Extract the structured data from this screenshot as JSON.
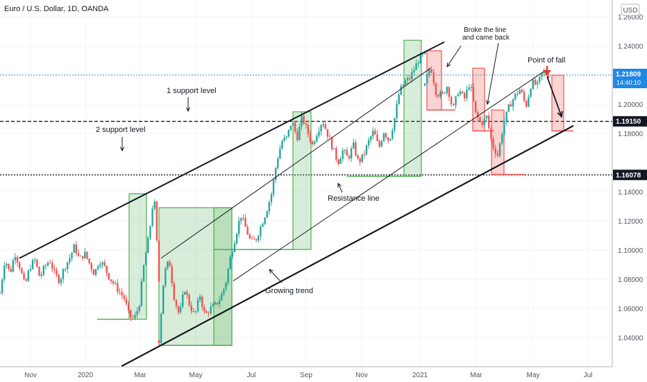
{
  "chart_data": {
    "type": "candlestick",
    "title": "Euro / U.S. Dollar, 1D, OANDA",
    "currency": "USD",
    "x_ticks": [
      "Nov",
      "2020",
      "Mar",
      "May",
      "Jul",
      "Sep",
      "Nov",
      "2021",
      "Mar",
      "May",
      "Jul"
    ],
    "y_ticks": [
      "1.26000",
      "1.24000",
      "1.20000",
      "1.18000",
      "1.14000",
      "1.12000",
      "1.10000",
      "1.08000",
      "1.06000",
      "1.04000"
    ],
    "ylim": [
      1.02,
      1.27
    ],
    "price_labels": [
      {
        "value": "1.21809",
        "sub": "14:40:10",
        "price": 1.21809,
        "color": "#1e88e5"
      },
      {
        "value": "1.19150",
        "price": 1.1915,
        "color": "#131722"
      },
      {
        "value": "1.16078",
        "price": 1.16078,
        "color": "#131722"
      }
    ],
    "horizontal_levels": [
      {
        "price": 1.1915,
        "style": "dashed"
      },
      {
        "price": 1.16078,
        "style": "dotted"
      },
      {
        "price": 1.21809,
        "style": "dotted",
        "color": "#1e88e5"
      }
    ],
    "annotations": {
      "support1": "1 support level",
      "support2": "2 support level",
      "resistance": "Resistance line",
      "growing": "Growing trend",
      "broke_line1": "Broke the line",
      "broke_line2": "and came back",
      "point_of_fall": "Point of fall"
    },
    "price_path": [
      [
        1.093,
        1.113,
        1.104,
        1.116,
        1.108,
        1.097,
        1.108,
        1.112,
        1.102,
        1.108,
        1.112,
        1.104,
        1.1,
        1.108,
        1.113,
        1.12,
        1.112,
        1.116,
        1.11,
        1.104,
        1.112,
        1.108,
        1.102,
        1.098,
        1.094,
        1.09,
        1.08,
        1.078,
        1.086,
        1.11,
        1.126,
        1.15,
        1.1
      ],
      [
        1.066,
        1.104,
        1.112,
        1.09,
        1.08,
        1.096,
        1.086,
        1.08,
        1.092,
        1.08,
        1.084,
        1.086,
        1.09,
        1.098,
        1.114,
        1.126,
        1.138,
        1.13,
        1.122,
        1.124,
        1.132,
        1.14,
        1.15,
        1.168,
        1.18,
        1.182,
        1.192,
        1.182,
        1.194,
        1.186,
        1.178,
        1.186,
        1.192,
        1.184,
        1.176,
        1.168,
        1.175,
        1.17,
        1.178,
        1.168,
        1.172,
        1.18,
        1.186,
        1.176,
        1.186,
        1.18,
        1.192,
        1.208,
        1.214,
        1.216,
        1.222,
        1.228,
        1.23
      ],
      [
        1.212,
        1.224,
        1.208,
        1.206,
        1.212,
        1.198,
        1.21,
        1.204,
        1.214,
        1.196,
        1.19,
        1.194,
        1.178,
        1.172,
        1.19,
        1.2,
        1.206,
        1.21,
        1.2,
        1.214,
        1.212,
        1.22,
        1.218
      ]
    ]
  }
}
